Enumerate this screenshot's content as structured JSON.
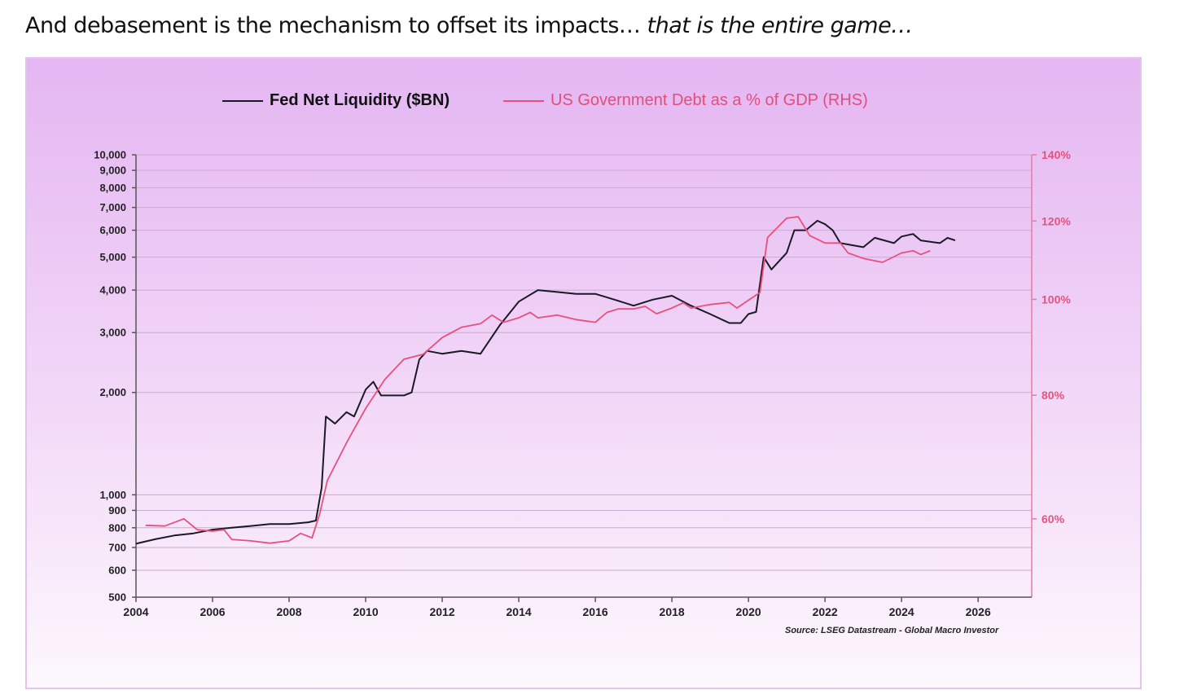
{
  "headline": {
    "normal": "And debasement is the mechanism to offset its impacts…",
    "italic": "that is the entire game…"
  },
  "chart_data": {
    "type": "line",
    "title": "",
    "legend": [
      {
        "name": "Fed Net Liquidity ($BN)",
        "color": "#1a1a24"
      },
      {
        "name": "US Government Debt as a % of GDP (RHS)",
        "color": "#e8507e"
      }
    ],
    "legend_position": "top-center",
    "x_ticks": [
      "2004",
      "2006",
      "2008",
      "2010",
      "2012",
      "2014",
      "2016",
      "2018",
      "2020",
      "2022",
      "2024",
      "2026"
    ],
    "xlim": [
      2004,
      2027.4
    ],
    "y_left": {
      "scale": "log",
      "ylim": [
        500,
        10000
      ],
      "ticks": [
        500,
        600,
        700,
        800,
        900,
        1000,
        2000,
        3000,
        4000,
        5000,
        6000,
        7000,
        8000,
        9000,
        10000
      ],
      "tick_labels": [
        "500",
        "600",
        "700",
        "800",
        "900",
        "1,000",
        "2,000",
        "3,000",
        "4,000",
        "5,000",
        "6,000",
        "7,000",
        "8,000",
        "9,000",
        "10,000"
      ]
    },
    "y_right": {
      "scale": "log",
      "ylim": [
        50,
        140
      ],
      "ticks": [
        60,
        80,
        100,
        120,
        140
      ],
      "tick_labels": [
        "60%",
        "80%",
        "100%",
        "120%",
        "140%"
      ]
    },
    "grid": true,
    "series": [
      {
        "name": "Fed Net Liquidity ($BN)",
        "axis": "left",
        "x": [
          2004.0,
          2004.5,
          2005.0,
          2005.5,
          2006.0,
          2006.5,
          2007.0,
          2007.5,
          2008.0,
          2008.5,
          2008.7,
          2008.85,
          2008.96,
          2009.2,
          2009.5,
          2009.7,
          2010.0,
          2010.2,
          2010.4,
          2011.0,
          2011.2,
          2011.4,
          2011.6,
          2012.0,
          2012.5,
          2013.0,
          2013.5,
          2014.0,
          2014.5,
          2015.0,
          2015.5,
          2016.0,
          2016.5,
          2017.0,
          2017.5,
          2018.0,
          2018.5,
          2019.0,
          2019.5,
          2019.8,
          2020.0,
          2020.2,
          2020.4,
          2020.6,
          2021.0,
          2021.2,
          2021.5,
          2021.8,
          2022.0,
          2022.2,
          2022.4,
          2023.0,
          2023.3,
          2023.8,
          2024.0,
          2024.3,
          2024.5,
          2025.0,
          2025.2,
          2025.4
        ],
        "values": [
          718,
          740,
          759,
          770,
          790,
          800,
          810,
          820,
          820,
          830,
          840,
          1050,
          1700,
          1620,
          1750,
          1700,
          2040,
          2150,
          1960,
          1960,
          2000,
          2500,
          2650,
          2600,
          2650,
          2600,
          3150,
          3700,
          4000,
          3950,
          3900,
          3900,
          3750,
          3600,
          3750,
          3850,
          3600,
          3400,
          3200,
          3200,
          3400,
          3450,
          5000,
          4600,
          5150,
          6000,
          6000,
          6400,
          6250,
          6000,
          5500,
          5350,
          5700,
          5500,
          5750,
          5850,
          5600,
          5500,
          5700,
          5600
        ]
      },
      {
        "name": "US Government Debt as a % of GDP (RHS)",
        "axis": "right",
        "x": [
          2004.25,
          2004.75,
          2005.25,
          2005.6,
          2006.0,
          2006.3,
          2006.5,
          2007.0,
          2007.5,
          2008.0,
          2008.3,
          2008.6,
          2008.8,
          2009.0,
          2009.5,
          2010.0,
          2010.5,
          2011.0,
          2011.5,
          2012.0,
          2012.5,
          2013.0,
          2013.3,
          2013.6,
          2014.0,
          2014.3,
          2014.5,
          2015.0,
          2015.5,
          2016.0,
          2016.3,
          2016.6,
          2017.0,
          2017.3,
          2017.6,
          2018.0,
          2018.3,
          2018.5,
          2019.0,
          2019.5,
          2019.7,
          2020.0,
          2020.3,
          2020.5,
          2021.0,
          2021.3,
          2021.6,
          2022.0,
          2022.4,
          2022.6,
          2023.0,
          2023.5,
          2024.0,
          2024.3,
          2024.5,
          2024.75
        ],
        "values": [
          59.1,
          59,
          60,
          58.5,
          58.3,
          58.5,
          57.2,
          57,
          56.7,
          57,
          58,
          57.4,
          60.7,
          65.6,
          71.6,
          77.6,
          83,
          87,
          88,
          91.5,
          93.7,
          94.5,
          96.4,
          94.8,
          95.8,
          97,
          95.8,
          96.4,
          95.4,
          94.8,
          97,
          97.8,
          97.8,
          98.4,
          96.7,
          98,
          99.2,
          98,
          98.8,
          99.3,
          98,
          99.8,
          101.6,
          115.5,
          120.8,
          121.2,
          116,
          114,
          114,
          111.4,
          110,
          109,
          111.4,
          112,
          111,
          112
        ]
      }
    ],
    "source": "Source: LSEG Datastream - Global Macro Investor"
  }
}
